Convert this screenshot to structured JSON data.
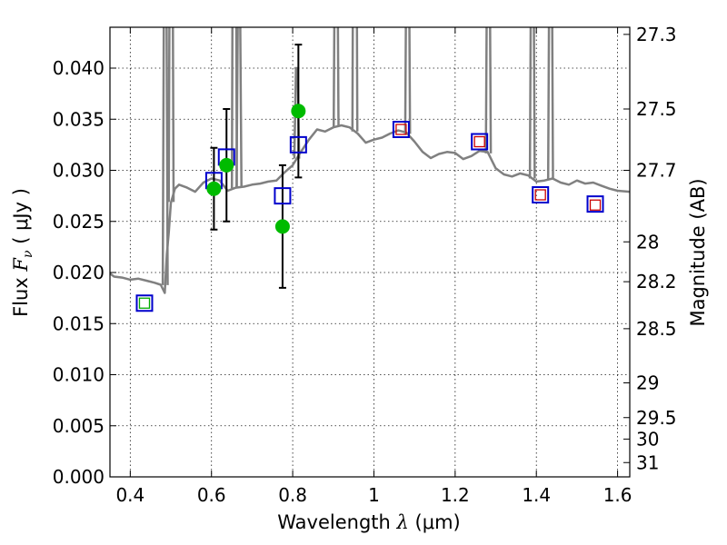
{
  "chart_data": {
    "type": "scatter",
    "title": "",
    "xlabel": "Wavelength",
    "xlabel_symbol": "λ",
    "xlabel_unit": "(μm)",
    "ylabel": "Flux",
    "ylabel_symbol": "F",
    "ylabel_subscript": "ν",
    "ylabel_unit": "( μJy )",
    "y2label": "Magnitude (AB)",
    "xlim": [
      0.35,
      1.63
    ],
    "ylim": [
      0.0,
      0.044
    ],
    "grid": true,
    "x_ticks": [
      {
        "value": 0.4,
        "label": "0.4"
      },
      {
        "value": 0.6,
        "label": "0.6"
      },
      {
        "value": 0.8,
        "label": "0.8"
      },
      {
        "value": 1.0,
        "label": "1"
      },
      {
        "value": 1.2,
        "label": "1.2"
      },
      {
        "value": 1.4,
        "label": "1.4"
      },
      {
        "value": 1.6,
        "label": "1.6"
      }
    ],
    "y_ticks": [
      {
        "value": 0.0,
        "label": "0.000"
      },
      {
        "value": 0.005,
        "label": "0.005"
      },
      {
        "value": 0.01,
        "label": "0.010"
      },
      {
        "value": 0.015,
        "label": "0.015"
      },
      {
        "value": 0.02,
        "label": "0.020"
      },
      {
        "value": 0.025,
        "label": "0.025"
      },
      {
        "value": 0.03,
        "label": "0.030"
      },
      {
        "value": 0.035,
        "label": "0.035"
      },
      {
        "value": 0.04,
        "label": "0.040"
      }
    ],
    "y2_ticks": [
      {
        "flux": 0.0433,
        "label": "27.3"
      },
      {
        "flux": 0.036,
        "label": "27.5"
      },
      {
        "flux": 0.03,
        "label": "27.7"
      },
      {
        "flux": 0.023,
        "label": "28"
      },
      {
        "flux": 0.0191,
        "label": "28.2"
      },
      {
        "flux": 0.0145,
        "label": "28.5"
      },
      {
        "flux": 0.0092,
        "label": "29"
      },
      {
        "flux": 0.0058,
        "label": "29.5"
      },
      {
        "flux": 0.0037,
        "label": "30"
      },
      {
        "flux": 0.0014,
        "label": "31"
      }
    ],
    "colors": {
      "spectrum": "#808080",
      "model_box": "#0000cc",
      "inner_box": "#cc0000",
      "inner_box_green": "#00aa00",
      "observed": "#00bb00",
      "error_bar": "#000000"
    },
    "series": [
      {
        "name": "model spectrum",
        "kind": "line",
        "x": [
          0.35,
          0.36,
          0.38,
          0.4,
          0.42,
          0.44,
          0.46,
          0.475,
          0.485,
          0.49,
          0.495,
          0.5,
          0.51,
          0.52,
          0.54,
          0.56,
          0.58,
          0.6,
          0.62,
          0.64,
          0.66,
          0.68,
          0.7,
          0.72,
          0.74,
          0.76,
          0.78,
          0.8,
          0.82,
          0.84,
          0.86,
          0.88,
          0.9,
          0.92,
          0.94,
          0.96,
          0.98,
          1.0,
          1.02,
          1.04,
          1.06,
          1.08,
          1.1,
          1.12,
          1.14,
          1.16,
          1.18,
          1.2,
          1.22,
          1.24,
          1.26,
          1.28,
          1.3,
          1.32,
          1.34,
          1.36,
          1.38,
          1.4,
          1.42,
          1.44,
          1.46,
          1.48,
          1.5,
          1.52,
          1.54,
          1.56,
          1.58,
          1.6,
          1.63
        ],
        "y": [
          0.0199,
          0.0196,
          0.0195,
          0.0193,
          0.0194,
          0.0192,
          0.019,
          0.0188,
          0.018,
          0.0218,
          0.024,
          0.0268,
          0.0282,
          0.0286,
          0.0283,
          0.0279,
          0.0288,
          0.0292,
          0.029,
          0.028,
          0.0283,
          0.0284,
          0.0286,
          0.0287,
          0.0289,
          0.029,
          0.0298,
          0.0305,
          0.0318,
          0.033,
          0.034,
          0.0338,
          0.0342,
          0.0344,
          0.0342,
          0.0336,
          0.0327,
          0.033,
          0.0332,
          0.0336,
          0.0339,
          0.0337,
          0.0328,
          0.0318,
          0.0312,
          0.0316,
          0.0318,
          0.0317,
          0.0311,
          0.0314,
          0.0319,
          0.0318,
          0.0302,
          0.0296,
          0.0294,
          0.0297,
          0.0295,
          0.0289,
          0.029,
          0.0292,
          0.0288,
          0.0286,
          0.029,
          0.0287,
          0.0288,
          0.0285,
          0.0282,
          0.028,
          0.0279
        ]
      },
      {
        "name": "emission lines",
        "kind": "spikes",
        "lines": [
          {
            "x": 0.486,
            "peak": 0.06
          },
          {
            "x": 0.5007,
            "peak": 0.07
          },
          {
            "x": 0.6563,
            "peak": 0.08
          },
          {
            "x": 0.6678,
            "peak": 0.05
          },
          {
            "x": 0.81,
            "peak": 0.04
          },
          {
            "x": 0.9069,
            "peak": 0.06
          },
          {
            "x": 0.9531,
            "peak": 0.08
          },
          {
            "x": 1.083,
            "peak": 0.06
          },
          {
            "x": 1.2818,
            "peak": 0.06
          },
          {
            "x": 1.39,
            "peak": 0.06
          },
          {
            "x": 1.435,
            "peak": 0.06
          }
        ]
      },
      {
        "name": "model photometry",
        "kind": "box",
        "x": [
          0.435,
          0.606,
          0.637,
          0.775,
          0.814,
          1.067,
          1.26,
          1.41,
          1.545
        ],
        "y": [
          0.017,
          0.029,
          0.0313,
          0.0275,
          0.0325,
          0.034,
          0.0328,
          0.0276,
          0.0267
        ]
      },
      {
        "name": "inner markers",
        "kind": "inner_box",
        "points": [
          {
            "x": 0.435,
            "y": 0.017,
            "color": "inner_box_green"
          },
          {
            "x": 1.067,
            "y": 0.034,
            "color": "inner_box"
          },
          {
            "x": 1.26,
            "y": 0.0328,
            "color": "inner_box"
          },
          {
            "x": 1.41,
            "y": 0.0276,
            "color": "inner_box"
          },
          {
            "x": 1.545,
            "y": 0.0266,
            "color": "inner_box"
          }
        ]
      },
      {
        "name": "observed photometry",
        "kind": "errorbar",
        "x": [
          0.606,
          0.637,
          0.775,
          0.814
        ],
        "y": [
          0.0282,
          0.0305,
          0.0245,
          0.0358
        ],
        "yerr": [
          0.004,
          0.0055,
          0.006,
          0.0065
        ]
      }
    ]
  }
}
